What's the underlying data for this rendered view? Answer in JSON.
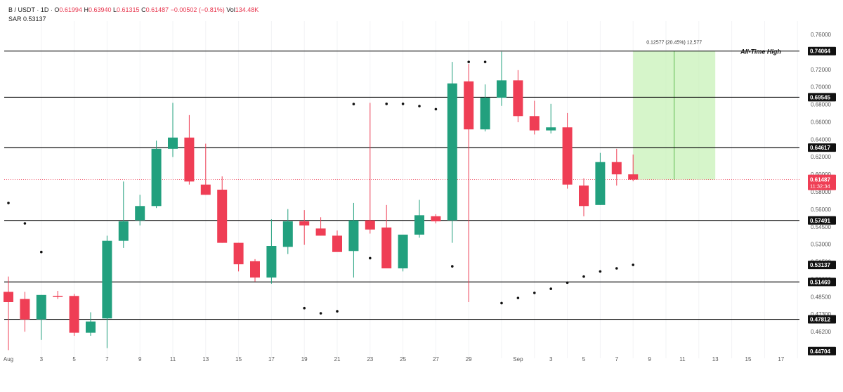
{
  "header": {
    "symbol": "B / USDT · 1D ·",
    "o_label": "O",
    "o": "0.61994",
    "h_label": "H",
    "h": "0.63940",
    "l_label": "L",
    "l": "0.61315",
    "c_label": "C",
    "c": "0.61487",
    "chg": "−0.00502 (−0.81%)",
    "vol_label": "Vol",
    "vol": "134.48K",
    "sar_label": "SAR",
    "sar": "0.53137"
  },
  "colors": {
    "up": "#22a07e",
    "down": "#ef3e55",
    "sar": "#111111",
    "level_line": "#111111",
    "box_fill": "#c8f2b8",
    "price_line": "#ef3e55"
  },
  "chart_data": {
    "type": "candlestick",
    "ylim": [
      0.44,
      0.77
    ],
    "x_tick_labels": [
      "Aug",
      "3",
      "5",
      "7",
      "9",
      "11",
      "13",
      "15",
      "17",
      "19",
      "21",
      "23",
      "25",
      "27",
      "29",
      "Sep",
      "3",
      "5",
      "7",
      "9",
      "11",
      "13",
      "15",
      "17"
    ],
    "y_tick_labels": [
      "0.76000",
      "0.74000",
      "0.72000",
      "0.70000",
      "0.68000",
      "0.66000",
      "0.64000",
      "0.62000",
      "0.60000",
      "0.58000",
      "0.56000",
      "0.54500",
      "0.53000",
      "0.51500",
      "0.50000",
      "0.48500",
      "0.47300",
      "0.46200",
      "0.45000"
    ],
    "candles": [
      {
        "date": "Aug 1",
        "o": 0.505,
        "h": 0.52,
        "l": 0.448,
        "c": 0.495
      },
      {
        "date": "Aug 2",
        "o": 0.498,
        "h": 0.505,
        "l": 0.466,
        "c": 0.478
      },
      {
        "date": "Aug 3",
        "o": 0.478,
        "h": 0.502,
        "l": 0.458,
        "c": 0.502
      },
      {
        "date": "Aug 4",
        "o": 0.501,
        "h": 0.506,
        "l": 0.498,
        "c": 0.5
      },
      {
        "date": "Aug 5",
        "o": 0.501,
        "h": 0.503,
        "l": 0.462,
        "c": 0.465
      },
      {
        "date": "Aug 6",
        "o": 0.465,
        "h": 0.485,
        "l": 0.462,
        "c": 0.476
      },
      {
        "date": "Aug 7",
        "o": 0.479,
        "h": 0.56,
        "l": 0.45,
        "c": 0.555
      },
      {
        "date": "Aug 8",
        "o": 0.555,
        "h": 0.613,
        "l": 0.548,
        "c": 0.574
      },
      {
        "date": "Aug 9",
        "o": 0.575,
        "h": 0.6,
        "l": 0.57,
        "c": 0.589
      },
      {
        "date": "Aug 10",
        "o": 0.589,
        "h": 0.653,
        "l": 0.587,
        "c": 0.645
      },
      {
        "date": "Aug 11",
        "o": 0.645,
        "h": 0.69,
        "l": 0.637,
        "c": 0.656
      },
      {
        "date": "Aug 12",
        "o": 0.656,
        "h": 0.678,
        "l": 0.61,
        "c": 0.613
      },
      {
        "date": "Aug 13",
        "o": 0.61,
        "h": 0.65,
        "l": 0.6,
        "c": 0.6
      },
      {
        "date": "Aug 14",
        "o": 0.605,
        "h": 0.618,
        "l": 0.553,
        "c": 0.553
      },
      {
        "date": "Aug 15",
        "o": 0.553,
        "h": 0.553,
        "l": 0.525,
        "c": 0.532
      },
      {
        "date": "Aug 16",
        "o": 0.535,
        "h": 0.537,
        "l": 0.515,
        "c": 0.519
      },
      {
        "date": "Aug 17",
        "o": 0.519,
        "h": 0.576,
        "l": 0.513,
        "c": 0.55
      },
      {
        "date": "Aug 18",
        "o": 0.549,
        "h": 0.586,
        "l": 0.542,
        "c": 0.574
      },
      {
        "date": "Aug 19",
        "o": 0.574,
        "h": 0.585,
        "l": 0.551,
        "c": 0.57
      },
      {
        "date": "Aug 20",
        "o": 0.567,
        "h": 0.578,
        "l": 0.56,
        "c": 0.56
      },
      {
        "date": "Aug 21",
        "o": 0.56,
        "h": 0.565,
        "l": 0.545,
        "c": 0.544
      },
      {
        "date": "Aug 22",
        "o": 0.545,
        "h": 0.592,
        "l": 0.519,
        "c": 0.575
      },
      {
        "date": "Aug 23",
        "o": 0.575,
        "h": 0.69,
        "l": 0.562,
        "c": 0.566
      },
      {
        "date": "Aug 24",
        "o": 0.568,
        "h": 0.59,
        "l": 0.528,
        "c": 0.528
      },
      {
        "date": "Aug 25",
        "o": 0.528,
        "h": 0.561,
        "l": 0.525,
        "c": 0.561
      },
      {
        "date": "Aug 26",
        "o": 0.561,
        "h": 0.595,
        "l": 0.558,
        "c": 0.58
      },
      {
        "date": "Aug 27",
        "o": 0.579,
        "h": 0.581,
        "l": 0.572,
        "c": 0.574
      },
      {
        "date": "Aug 28",
        "o": 0.575,
        "h": 0.73,
        "l": 0.553,
        "c": 0.709
      },
      {
        "date": "Aug 29",
        "o": 0.711,
        "h": 0.728,
        "l": 0.495,
        "c": 0.664
      },
      {
        "date": "Aug 30",
        "o": 0.664,
        "h": 0.708,
        "l": 0.662,
        "c": 0.695
      },
      {
        "date": "Aug 31",
        "o": 0.695,
        "h": 0.74,
        "l": 0.687,
        "c": 0.712
      },
      {
        "date": "Sep 1",
        "o": 0.712,
        "h": 0.722,
        "l": 0.671,
        "c": 0.677
      },
      {
        "date": "Sep 2",
        "o": 0.677,
        "h": 0.692,
        "l": 0.659,
        "c": 0.663
      },
      {
        "date": "Sep 3",
        "o": 0.663,
        "h": 0.689,
        "l": 0.66,
        "c": 0.666
      },
      {
        "date": "Sep 4",
        "o": 0.666,
        "h": 0.68,
        "l": 0.606,
        "c": 0.61
      },
      {
        "date": "Sep 5",
        "o": 0.609,
        "h": 0.616,
        "l": 0.579,
        "c": 0.589
      },
      {
        "date": "Sep 6",
        "o": 0.59,
        "h": 0.641,
        "l": 0.59,
        "c": 0.632
      },
      {
        "date": "Sep 7",
        "o": 0.632,
        "h": 0.645,
        "l": 0.609,
        "c": 0.62
      },
      {
        "date": "Sep 8",
        "o": 0.62,
        "h": 0.6394,
        "l": 0.6132,
        "c": 0.6149
      }
    ],
    "sar_points": [
      {
        "date": "Aug 1",
        "v": 0.592
      },
      {
        "date": "Aug 2",
        "v": 0.572
      },
      {
        "date": "Aug 3",
        "v": 0.544
      },
      {
        "date": "Aug 19",
        "v": 0.489
      },
      {
        "date": "Aug 20",
        "v": 0.484
      },
      {
        "date": "Aug 21",
        "v": 0.486
      },
      {
        "date": "Aug 22",
        "v": 0.6888
      },
      {
        "date": "Aug 23",
        "v": 0.538
      },
      {
        "date": "Aug 24",
        "v": 0.689
      },
      {
        "date": "Aug 25",
        "v": 0.689
      },
      {
        "date": "Aug 26",
        "v": 0.6868
      },
      {
        "date": "Aug 27",
        "v": 0.6838
      },
      {
        "date": "Aug 28",
        "v": 0.53
      },
      {
        "date": "Aug 29",
        "v": 0.73
      },
      {
        "date": "Aug 30",
        "v": 0.73
      },
      {
        "date": "Aug 31",
        "v": 0.494
      },
      {
        "date": "Sep 1",
        "v": 0.499
      },
      {
        "date": "Sep 2",
        "v": 0.504
      },
      {
        "date": "Sep 3",
        "v": 0.508
      },
      {
        "date": "Sep 4",
        "v": 0.514
      },
      {
        "date": "Sep 5",
        "v": 0.52
      },
      {
        "date": "Sep 6",
        "v": 0.525
      },
      {
        "date": "Sep 7",
        "v": 0.528
      },
      {
        "date": "Sep 8",
        "v": 0.5314
      }
    ],
    "levels": [
      {
        "value": 0.74064,
        "label": "0.74064",
        "caption": "All-Time High"
      },
      {
        "value": 0.69545,
        "label": "0.69545"
      },
      {
        "value": 0.64617,
        "label": "0.64617"
      },
      {
        "value": 0.57491,
        "label": "0.57491"
      },
      {
        "value": 0.51469,
        "label": "0.51469"
      },
      {
        "value": 0.47812,
        "label": "0.47812"
      },
      {
        "value": 0.44704,
        "label": "0.44704"
      }
    ],
    "sar_label_value": {
      "value": 0.53137,
      "label": "0.53137"
    },
    "current_price": {
      "value": 0.61487,
      "label": "0.61487",
      "countdown": "11:32:34"
    },
    "target_box": {
      "from_date": "Sep 8",
      "to_date": "Sep 13",
      "y_from": 0.61487,
      "y_to": 0.74064,
      "label": "0.12577 (20.45%) 12,577"
    }
  }
}
